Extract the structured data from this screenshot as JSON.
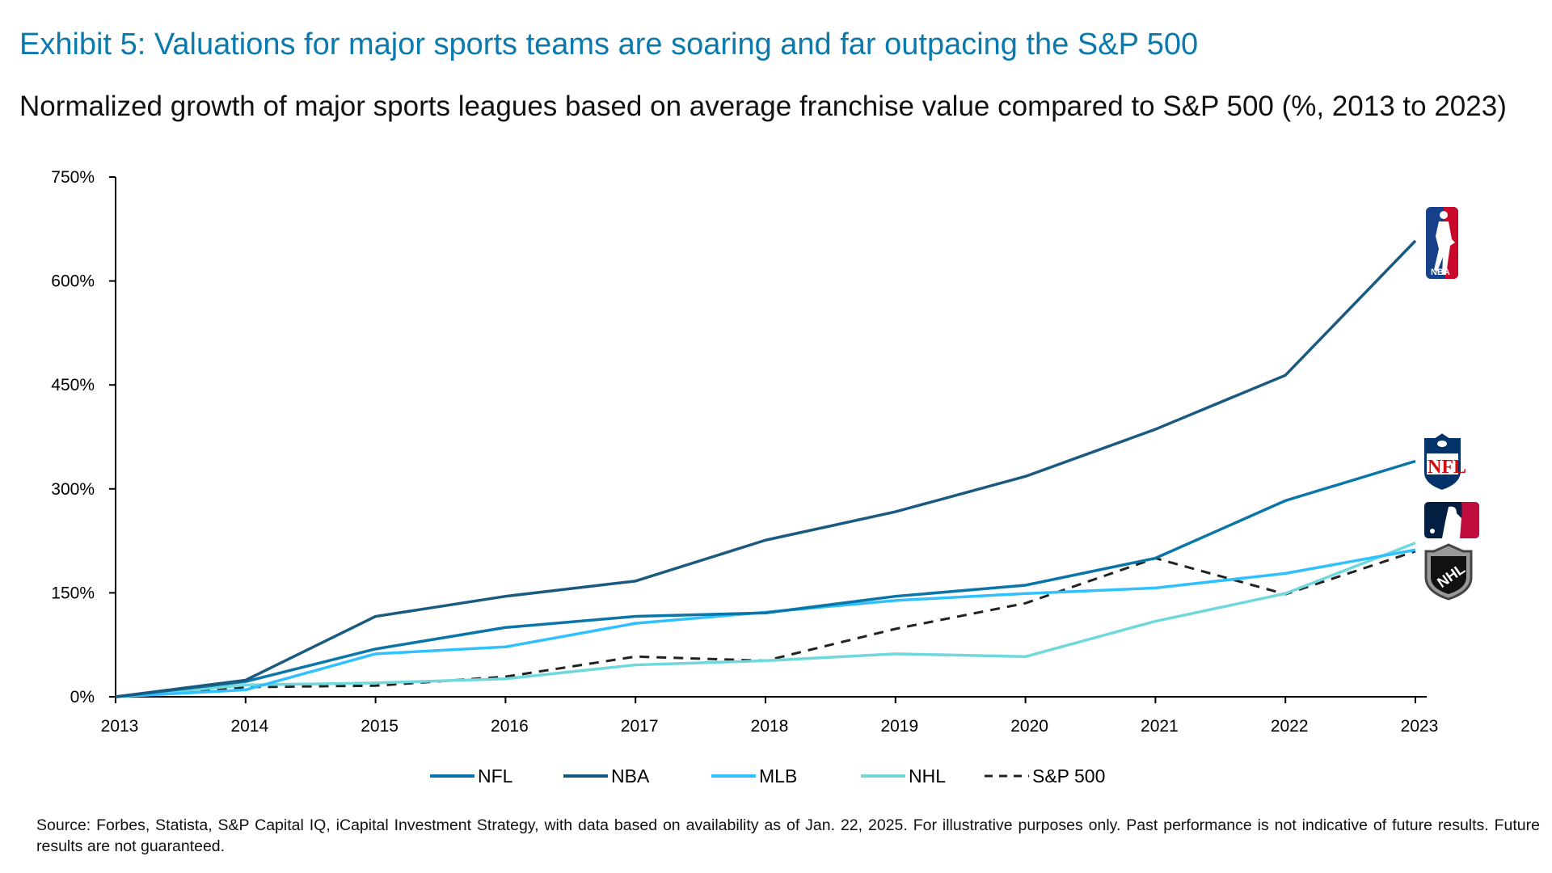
{
  "title": "Exhibit 5: Valuations for major sports teams are soaring and far outpacing the S&P 500",
  "subtitle": "Normalized growth of major sports leagues based on average franchise value compared to S&P 500 (%, 2013 to 2023)",
  "source": "Source: Forbes, Statista, S&P Capital IQ, iCapital Investment Strategy, with data based on availability as of Jan. 22, 2025. For illustrative purposes only. Past performance is not indicative of future results. Future results are not guaranteed.",
  "chart_data": {
    "type": "line",
    "title": "",
    "xlabel": "",
    "ylabel": "",
    "x": [
      "2013",
      "2014",
      "2015",
      "2016",
      "2017",
      "2018",
      "2019",
      "2020",
      "2021",
      "2022",
      "2023"
    ],
    "ylim": [
      0,
      750
    ],
    "yticks": [
      0,
      150,
      300,
      450,
      600,
      750
    ],
    "ytick_labels": [
      "0%",
      "150%",
      "300%",
      "450%",
      "600%",
      "750%"
    ],
    "grid": false,
    "legend_position": "bottom",
    "series": [
      {
        "name": "NFL",
        "color": "#0a76a8",
        "dashed": false,
        "logo": "nfl-logo",
        "values": [
          0,
          22,
          69,
          100,
          116,
          121,
          145,
          161,
          200,
          283,
          340
        ]
      },
      {
        "name": "NBA",
        "color": "#1b5a80",
        "dashed": false,
        "logo": "nba-logo",
        "values": [
          0,
          24,
          116,
          145,
          167,
          226,
          267,
          318,
          386,
          464,
          658
        ]
      },
      {
        "name": "MLB",
        "color": "#2ec0ff",
        "dashed": false,
        "logo": "mlb-logo",
        "values": [
          0,
          10,
          62,
          72,
          106,
          122,
          139,
          149,
          157,
          178,
          212
        ]
      },
      {
        "name": "NHL",
        "color": "#6fd8dc",
        "dashed": false,
        "logo": "nhl-logo",
        "values": [
          0,
          17,
          20,
          26,
          46,
          52,
          62,
          58,
          109,
          149,
          222
        ]
      },
      {
        "name": "S&P 500",
        "color": "#222222",
        "dashed": true,
        "values": [
          0,
          14,
          16,
          29,
          58,
          52,
          98,
          135,
          200,
          148,
          210
        ]
      }
    ]
  }
}
